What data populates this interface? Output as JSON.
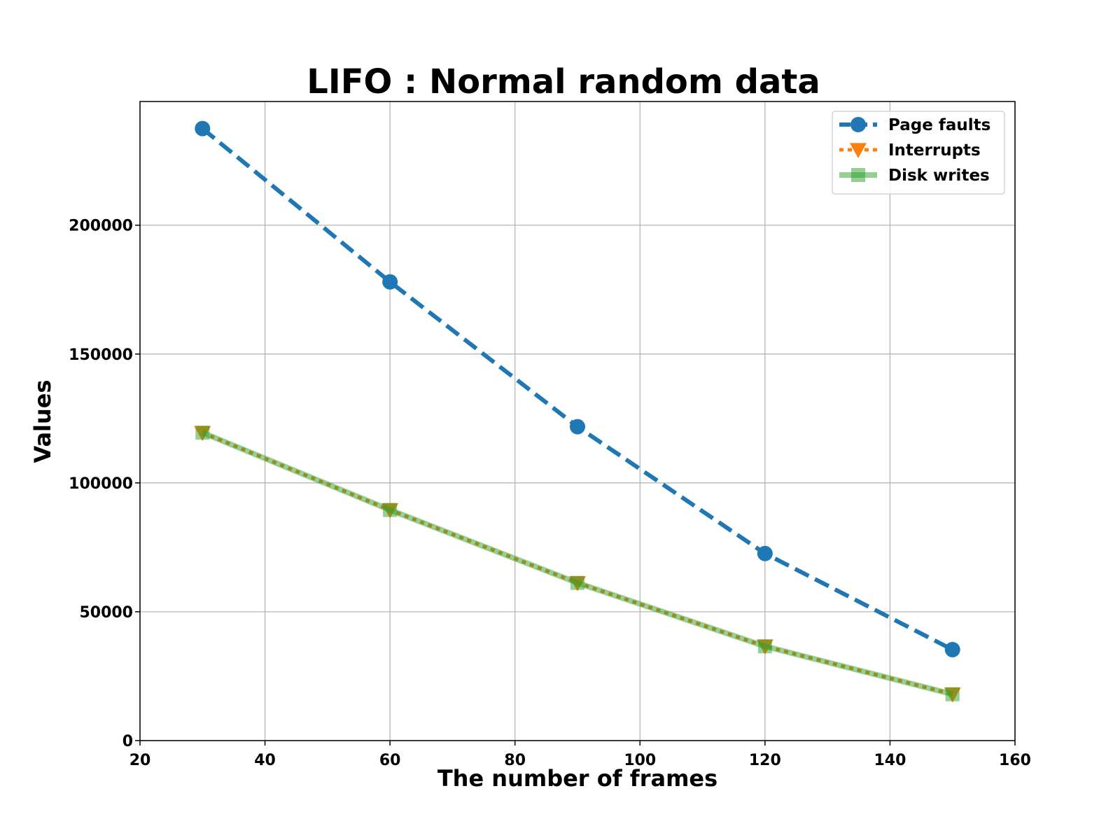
{
  "chart_data": {
    "type": "line",
    "title": "LIFO : Normal random data",
    "xlabel": "The number of frames",
    "ylabel": "Values",
    "xlim": [
      20,
      160
    ],
    "ylim": [
      0,
      248000
    ],
    "xticks": [
      20,
      40,
      60,
      80,
      100,
      120,
      140,
      160
    ],
    "yticks": [
      0,
      50000,
      100000,
      150000,
      200000
    ],
    "grid": true,
    "legend_position": "top-right",
    "x": [
      30,
      60,
      90,
      120,
      150
    ],
    "series": [
      {
        "name": "Page faults",
        "values": [
          237500,
          178000,
          121800,
          72600,
          35300
        ],
        "color": "#1f77b4",
        "line_style": "dashed",
        "marker": "circle"
      },
      {
        "name": "Interrupts",
        "values": [
          119500,
          89500,
          61200,
          36600,
          18000
        ],
        "color": "#ff7f0e",
        "line_style": "dotted",
        "marker": "triangle-down"
      },
      {
        "name": "Disk writes",
        "values": [
          119500,
          89500,
          61200,
          36600,
          18000
        ],
        "color": "#2ca02c",
        "line_style": "solid",
        "marker": "square",
        "alpha": 0.5
      }
    ]
  }
}
